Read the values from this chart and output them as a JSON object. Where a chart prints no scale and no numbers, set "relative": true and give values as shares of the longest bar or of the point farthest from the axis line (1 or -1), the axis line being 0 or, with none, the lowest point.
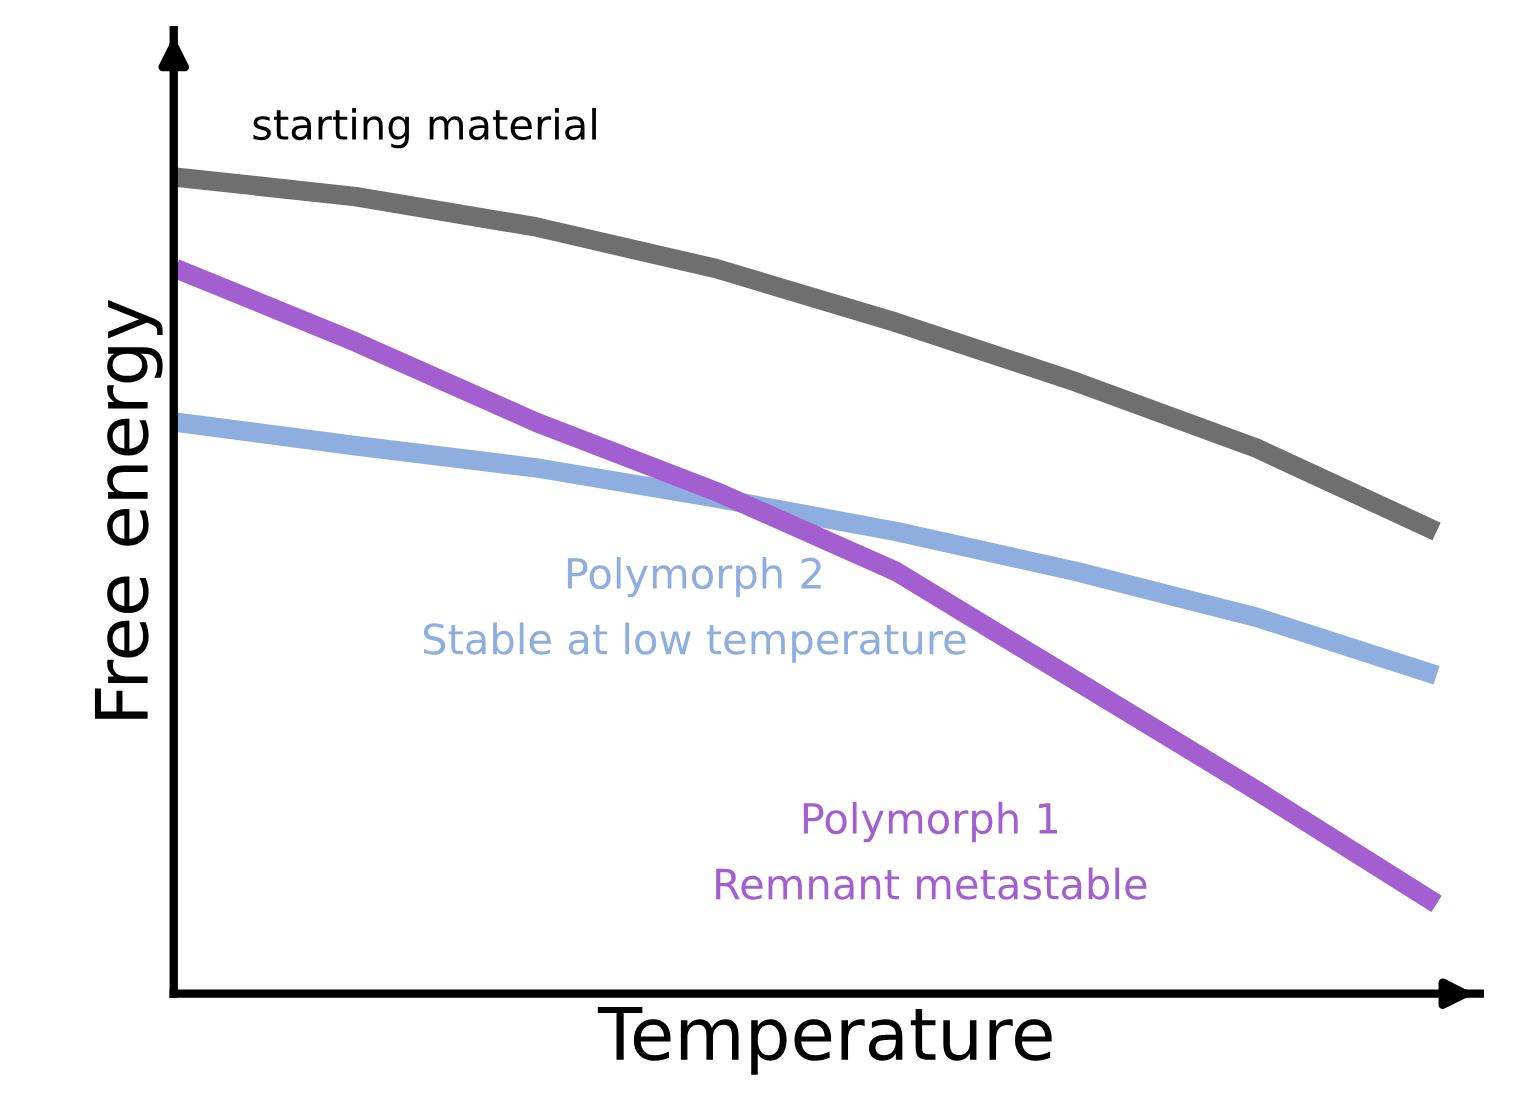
{
  "chart_data": {
    "type": "line",
    "relative": true,
    "xlabel": "Temperature",
    "ylabel": "Free energy",
    "categories": [
      null,
      null,
      null,
      null,
      null,
      null,
      null,
      null
    ],
    "legend": false,
    "marker": "none",
    "line_style": "solid",
    "series": [
      {
        "name": "starting material",
        "color": "#6f6f6f",
        "values": [
          1,
          0.976,
          0.939,
          0.888,
          0.822,
          0.749,
          0.668,
          0.566
        ]
      },
      {
        "name": "Polymorph 2\nStable at low temperature",
        "color": "#8eaee0",
        "values": [
          0.7,
          0.671,
          0.644,
          0.607,
          0.566,
          0.517,
          0.461,
          0.39
        ]
      },
      {
        "name": "Polymorph 1\nRemnant metastable",
        "color": "#a35fd0",
        "values": [
          0.888,
          0.798,
          0.7,
          0.615,
          0.517,
          0.383,
          0.249,
          0.11
        ]
      }
    ]
  }
}
